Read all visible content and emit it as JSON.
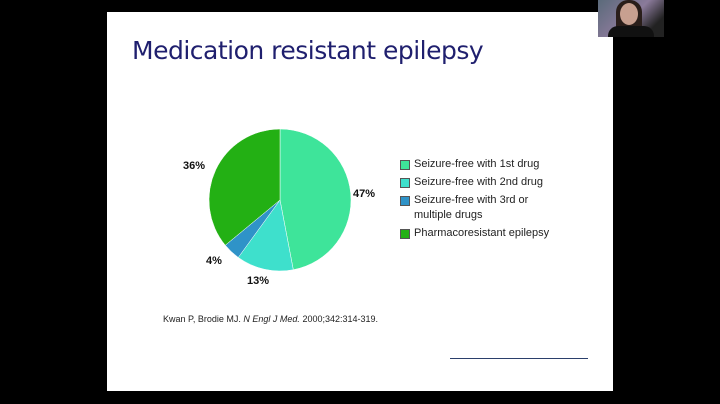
{
  "slide": {
    "title": "Medication resistant epilepsy",
    "citation": {
      "authors": "Kwan P, Brodie MJ.",
      "journal": "N Engl J Med.",
      "details": "2000;342:314-319."
    }
  },
  "chart_data": {
    "type": "pie",
    "title": "",
    "categories": [
      "Seizure-free with 1st drug",
      "Seizure-free with 2nd drug",
      "Seizure-free with 3rd or multiple drugs",
      "Pharmacoresistant epilepsy"
    ],
    "values": [
      47,
      13,
      4,
      36
    ],
    "labels": [
      "47%",
      "13%",
      "4%",
      "36%"
    ],
    "colors": [
      "#3ee49a",
      "#3ee0cc",
      "#2f93c8",
      "#23b014"
    ],
    "legend": "right"
  },
  "webcam": {
    "icon": "participant-video"
  }
}
